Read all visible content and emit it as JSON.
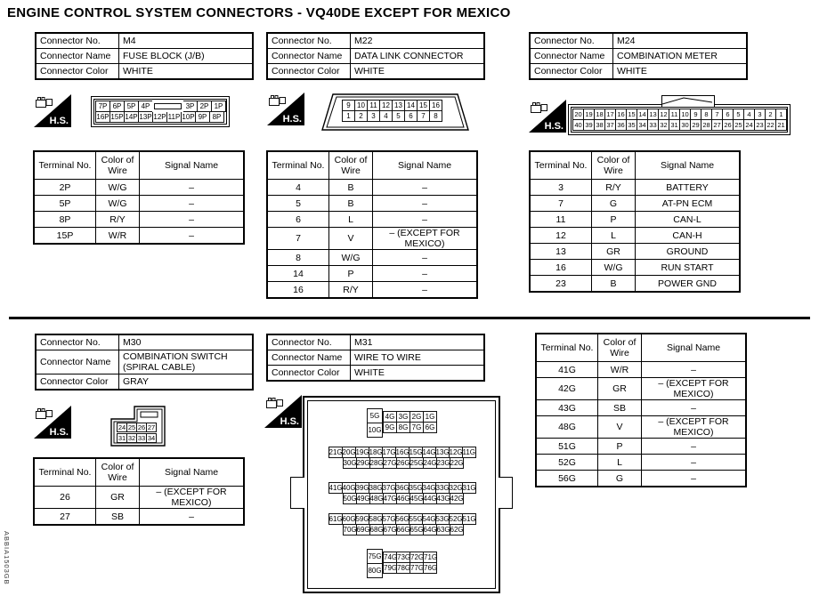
{
  "title": "ENGINE CONTROL SYSTEM CONNECTORS - VQ40DE EXCEPT FOR MEXICO",
  "doc_code": "ABBIA1503GB",
  "labels": {
    "connector_no": "Connector No.",
    "connector_name": "Connector Name",
    "connector_color": "Connector Color",
    "terminal_no": "Terminal No.",
    "color_of_wire": "Color of Wire",
    "signal_name": "Signal Name",
    "hs": "H.S."
  },
  "connectors": {
    "m4": {
      "no": "M4",
      "name": "FUSE BLOCK (J/B)",
      "color": "WHITE",
      "pins_top": [
        "7P",
        "6P",
        "5P",
        "4P",
        "",
        "3P",
        "2P",
        "1P"
      ],
      "pins_bottom": [
        "16P",
        "15P",
        "14P",
        "13P",
        "12P",
        "11P",
        "10P",
        "9P",
        "8P"
      ],
      "terminals": [
        [
          "2P",
          "W/G",
          "–"
        ],
        [
          "5P",
          "W/G",
          "–"
        ],
        [
          "8P",
          "R/Y",
          "–"
        ],
        [
          "15P",
          "W/R",
          "–"
        ]
      ]
    },
    "m22": {
      "no": "M22",
      "name": "DATA LINK CONNECTOR",
      "color": "WHITE",
      "pins_top": [
        "9",
        "10",
        "11",
        "12",
        "13",
        "14",
        "15",
        "16"
      ],
      "pins_bottom": [
        "1",
        "2",
        "3",
        "4",
        "5",
        "6",
        "7",
        "8"
      ],
      "terminals": [
        [
          "4",
          "B",
          "–"
        ],
        [
          "5",
          "B",
          "–"
        ],
        [
          "6",
          "L",
          "–"
        ],
        [
          "7",
          "V",
          "– (EXCEPT FOR MEXICO)"
        ],
        [
          "8",
          "W/G",
          "–"
        ],
        [
          "14",
          "P",
          "–"
        ],
        [
          "16",
          "R/Y",
          "–"
        ]
      ]
    },
    "m24": {
      "no": "M24",
      "name": "COMBINATION METER",
      "color": "WHITE",
      "pins_top": [
        "20",
        "19",
        "18",
        "17",
        "16",
        "15",
        "14",
        "13",
        "12",
        "11",
        "10",
        "9",
        "8",
        "7",
        "6",
        "5",
        "4",
        "3",
        "2",
        "1"
      ],
      "pins_bottom": [
        "40",
        "39",
        "38",
        "37",
        "36",
        "35",
        "34",
        "33",
        "32",
        "31",
        "30",
        "29",
        "28",
        "27",
        "26",
        "25",
        "24",
        "23",
        "22",
        "21"
      ],
      "terminals": [
        [
          "3",
          "R/Y",
          "BATTERY"
        ],
        [
          "7",
          "G",
          "AT-PN ECM"
        ],
        [
          "11",
          "P",
          "CAN-L"
        ],
        [
          "12",
          "L",
          "CAN-H"
        ],
        [
          "13",
          "GR",
          "GROUND"
        ],
        [
          "16",
          "W/G",
          "RUN START"
        ],
        [
          "23",
          "B",
          "POWER GND"
        ]
      ]
    },
    "m30": {
      "no": "M30",
      "name": "COMBINATION SWITCH (SPIRAL CABLE)",
      "color": "GRAY",
      "pins_top": [
        "24",
        "25",
        "26",
        "27"
      ],
      "pins_bottom": [
        "31",
        "32",
        "33",
        "34"
      ],
      "terminals": [
        [
          "26",
          "GR",
          "– (EXCEPT FOR MEXICO)"
        ],
        [
          "27",
          "SB",
          "–"
        ]
      ]
    },
    "m31": {
      "no": "M31",
      "name": "WIRE TO WIRE",
      "color": "WHITE",
      "g1_left": [
        "5G",
        "10G"
      ],
      "g1_rows": [
        [
          "4G",
          "3G",
          "2G",
          "1G"
        ],
        [
          "9G",
          "8G",
          "7G",
          "6G"
        ]
      ],
      "g2_rowA": [
        "21G",
        "20G",
        "19G",
        "18G",
        "17G",
        "16G",
        "15G",
        "14G",
        "13G",
        "12G",
        "11G"
      ],
      "g2_rowB": [
        "30G",
        "29G",
        "28G",
        "27G",
        "26G",
        "25G",
        "24G",
        "23G",
        "22G"
      ],
      "g3_rowA": [
        "41G",
        "40G",
        "39G",
        "38G",
        "37G",
        "36G",
        "35G",
        "34G",
        "33G",
        "32G",
        "31G"
      ],
      "g3_rowB": [
        "50G",
        "49G",
        "48G",
        "47G",
        "46G",
        "45G",
        "44G",
        "43G",
        "42G"
      ],
      "g4_rowA": [
        "61G",
        "60G",
        "59G",
        "58G",
        "57G",
        "56G",
        "55G",
        "54G",
        "53G",
        "52G",
        "51G"
      ],
      "g4_rowB": [
        "70G",
        "69G",
        "68G",
        "67G",
        "66G",
        "65G",
        "64G",
        "63G",
        "62G"
      ],
      "g5_left": [
        "75G",
        "80G"
      ],
      "g5_rows": [
        [
          "74G",
          "73G",
          "72G",
          "71G"
        ],
        [
          "79G",
          "78G",
          "77G",
          "76G"
        ]
      ],
      "terminals": [
        [
          "41G",
          "W/R",
          "–"
        ],
        [
          "42G",
          "GR",
          "– (EXCEPT FOR MEXICO)"
        ],
        [
          "43G",
          "SB",
          "–"
        ],
        [
          "48G",
          "V",
          "– (EXCEPT FOR MEXICO)"
        ],
        [
          "51G",
          "P",
          "–"
        ],
        [
          "52G",
          "L",
          "–"
        ],
        [
          "56G",
          "G",
          "–"
        ]
      ]
    }
  }
}
